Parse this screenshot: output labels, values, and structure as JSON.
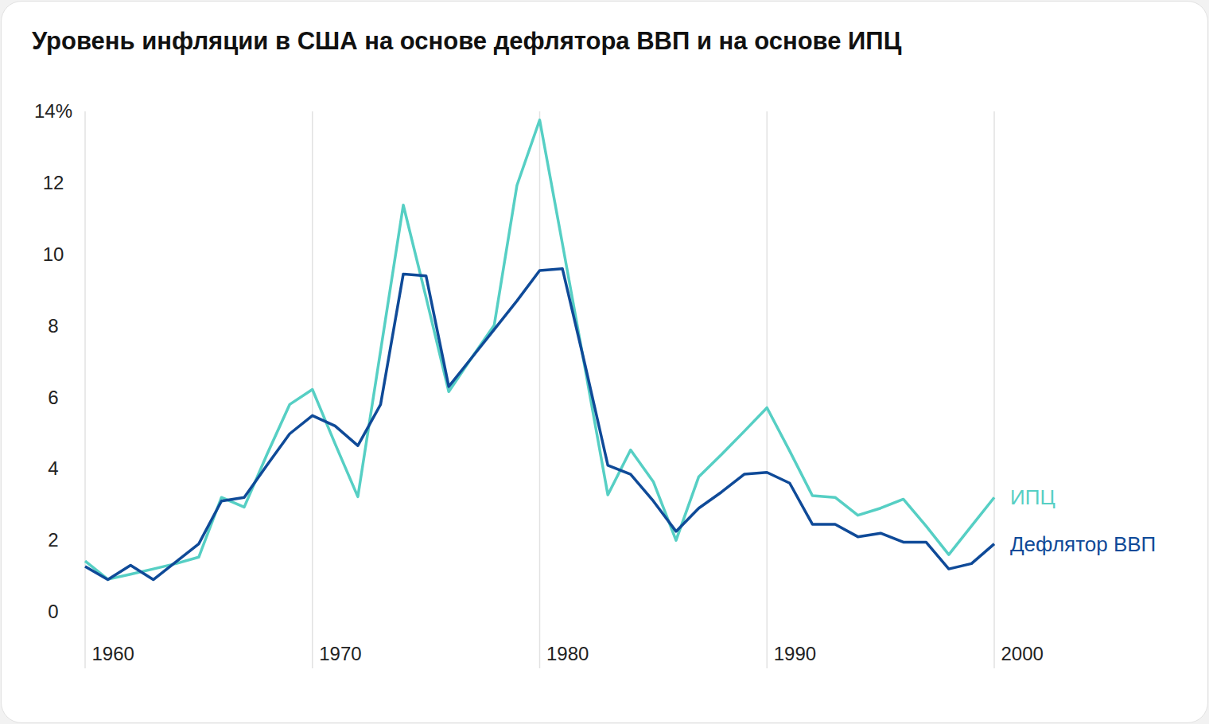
{
  "chart_data": {
    "type": "line",
    "title": "Уровень инфляции в США на основе дефлятора ВВП и на основе ИПЦ",
    "x": [
      1960,
      1961,
      1962,
      1963,
      1964,
      1965,
      1966,
      1967,
      1968,
      1969,
      1970,
      1971,
      1972,
      1973,
      1974,
      1975,
      1976,
      1977,
      1978,
      1979,
      1980,
      1981,
      1982,
      1983,
      1984,
      1985,
      1986,
      1987,
      1988,
      1989,
      1990,
      1991,
      1992,
      1993,
      1994,
      1995,
      1996,
      1997,
      1998,
      1999,
      2000
    ],
    "series": [
      {
        "name": "ИПЦ",
        "color": "#56cfc4",
        "values": [
          1.42,
          0.91,
          1.05,
          1.2,
          1.35,
          1.53,
          3.2,
          2.93,
          4.4,
          5.8,
          6.22,
          4.7,
          3.22,
          7.3,
          11.38,
          8.8,
          6.16,
          7.1,
          8.02,
          11.93,
          13.76,
          10.3,
          6.8,
          3.27,
          4.53,
          3.64,
          2.0,
          3.78,
          4.4,
          5.05,
          5.71,
          4.5,
          3.25,
          3.2,
          2.7,
          2.9,
          3.15,
          2.4,
          1.6,
          2.4,
          3.2
        ]
      },
      {
        "name": "Дефлятор ВВП",
        "color": "#0f4a98",
        "values": [
          1.27,
          0.9,
          1.3,
          0.9,
          1.4,
          1.9,
          3.1,
          3.2,
          4.1,
          4.98,
          5.49,
          5.2,
          4.65,
          5.8,
          9.45,
          9.4,
          6.3,
          7.1,
          7.9,
          8.7,
          9.55,
          9.6,
          6.9,
          4.1,
          3.85,
          3.1,
          2.25,
          2.9,
          3.35,
          3.85,
          3.9,
          3.6,
          2.45,
          2.45,
          2.1,
          2.2,
          1.95,
          1.95,
          1.2,
          1.35,
          1.9
        ]
      }
    ],
    "xlim": [
      1960,
      2000
    ],
    "ylim": [
      0,
      14
    ],
    "xticks": [
      1960,
      1970,
      1980,
      1990,
      2000
    ],
    "yticks": [
      0,
      2,
      4,
      6,
      8,
      10,
      12,
      {
        "value": 14,
        "label": "14%"
      }
    ],
    "grid": true,
    "legend": "right"
  }
}
